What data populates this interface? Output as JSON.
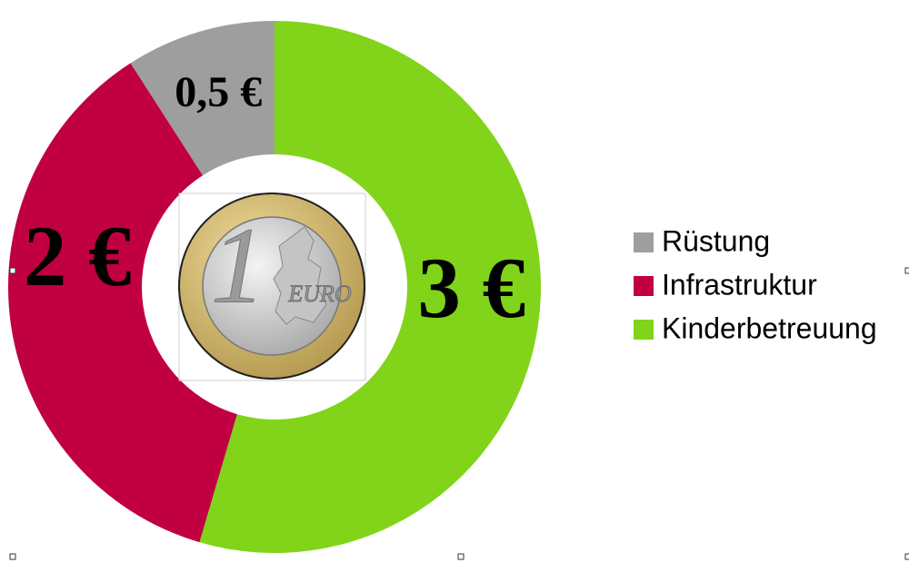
{
  "chart_data": {
    "type": "donut",
    "series": [
      {
        "name": "Rüstung",
        "color": "#9e9e9e",
        "value": 0.5,
        "value_label": "0,5 €"
      },
      {
        "name": "Infrastruktur",
        "color": "#c10042",
        "value": 2,
        "value_label": "2 €"
      },
      {
        "name": "Kinderbetreuung",
        "color": "#81d41a",
        "value": 3,
        "value_label": "3 €"
      }
    ],
    "legend": "right",
    "center_image_text": [
      "1",
      "EURO"
    ]
  }
}
